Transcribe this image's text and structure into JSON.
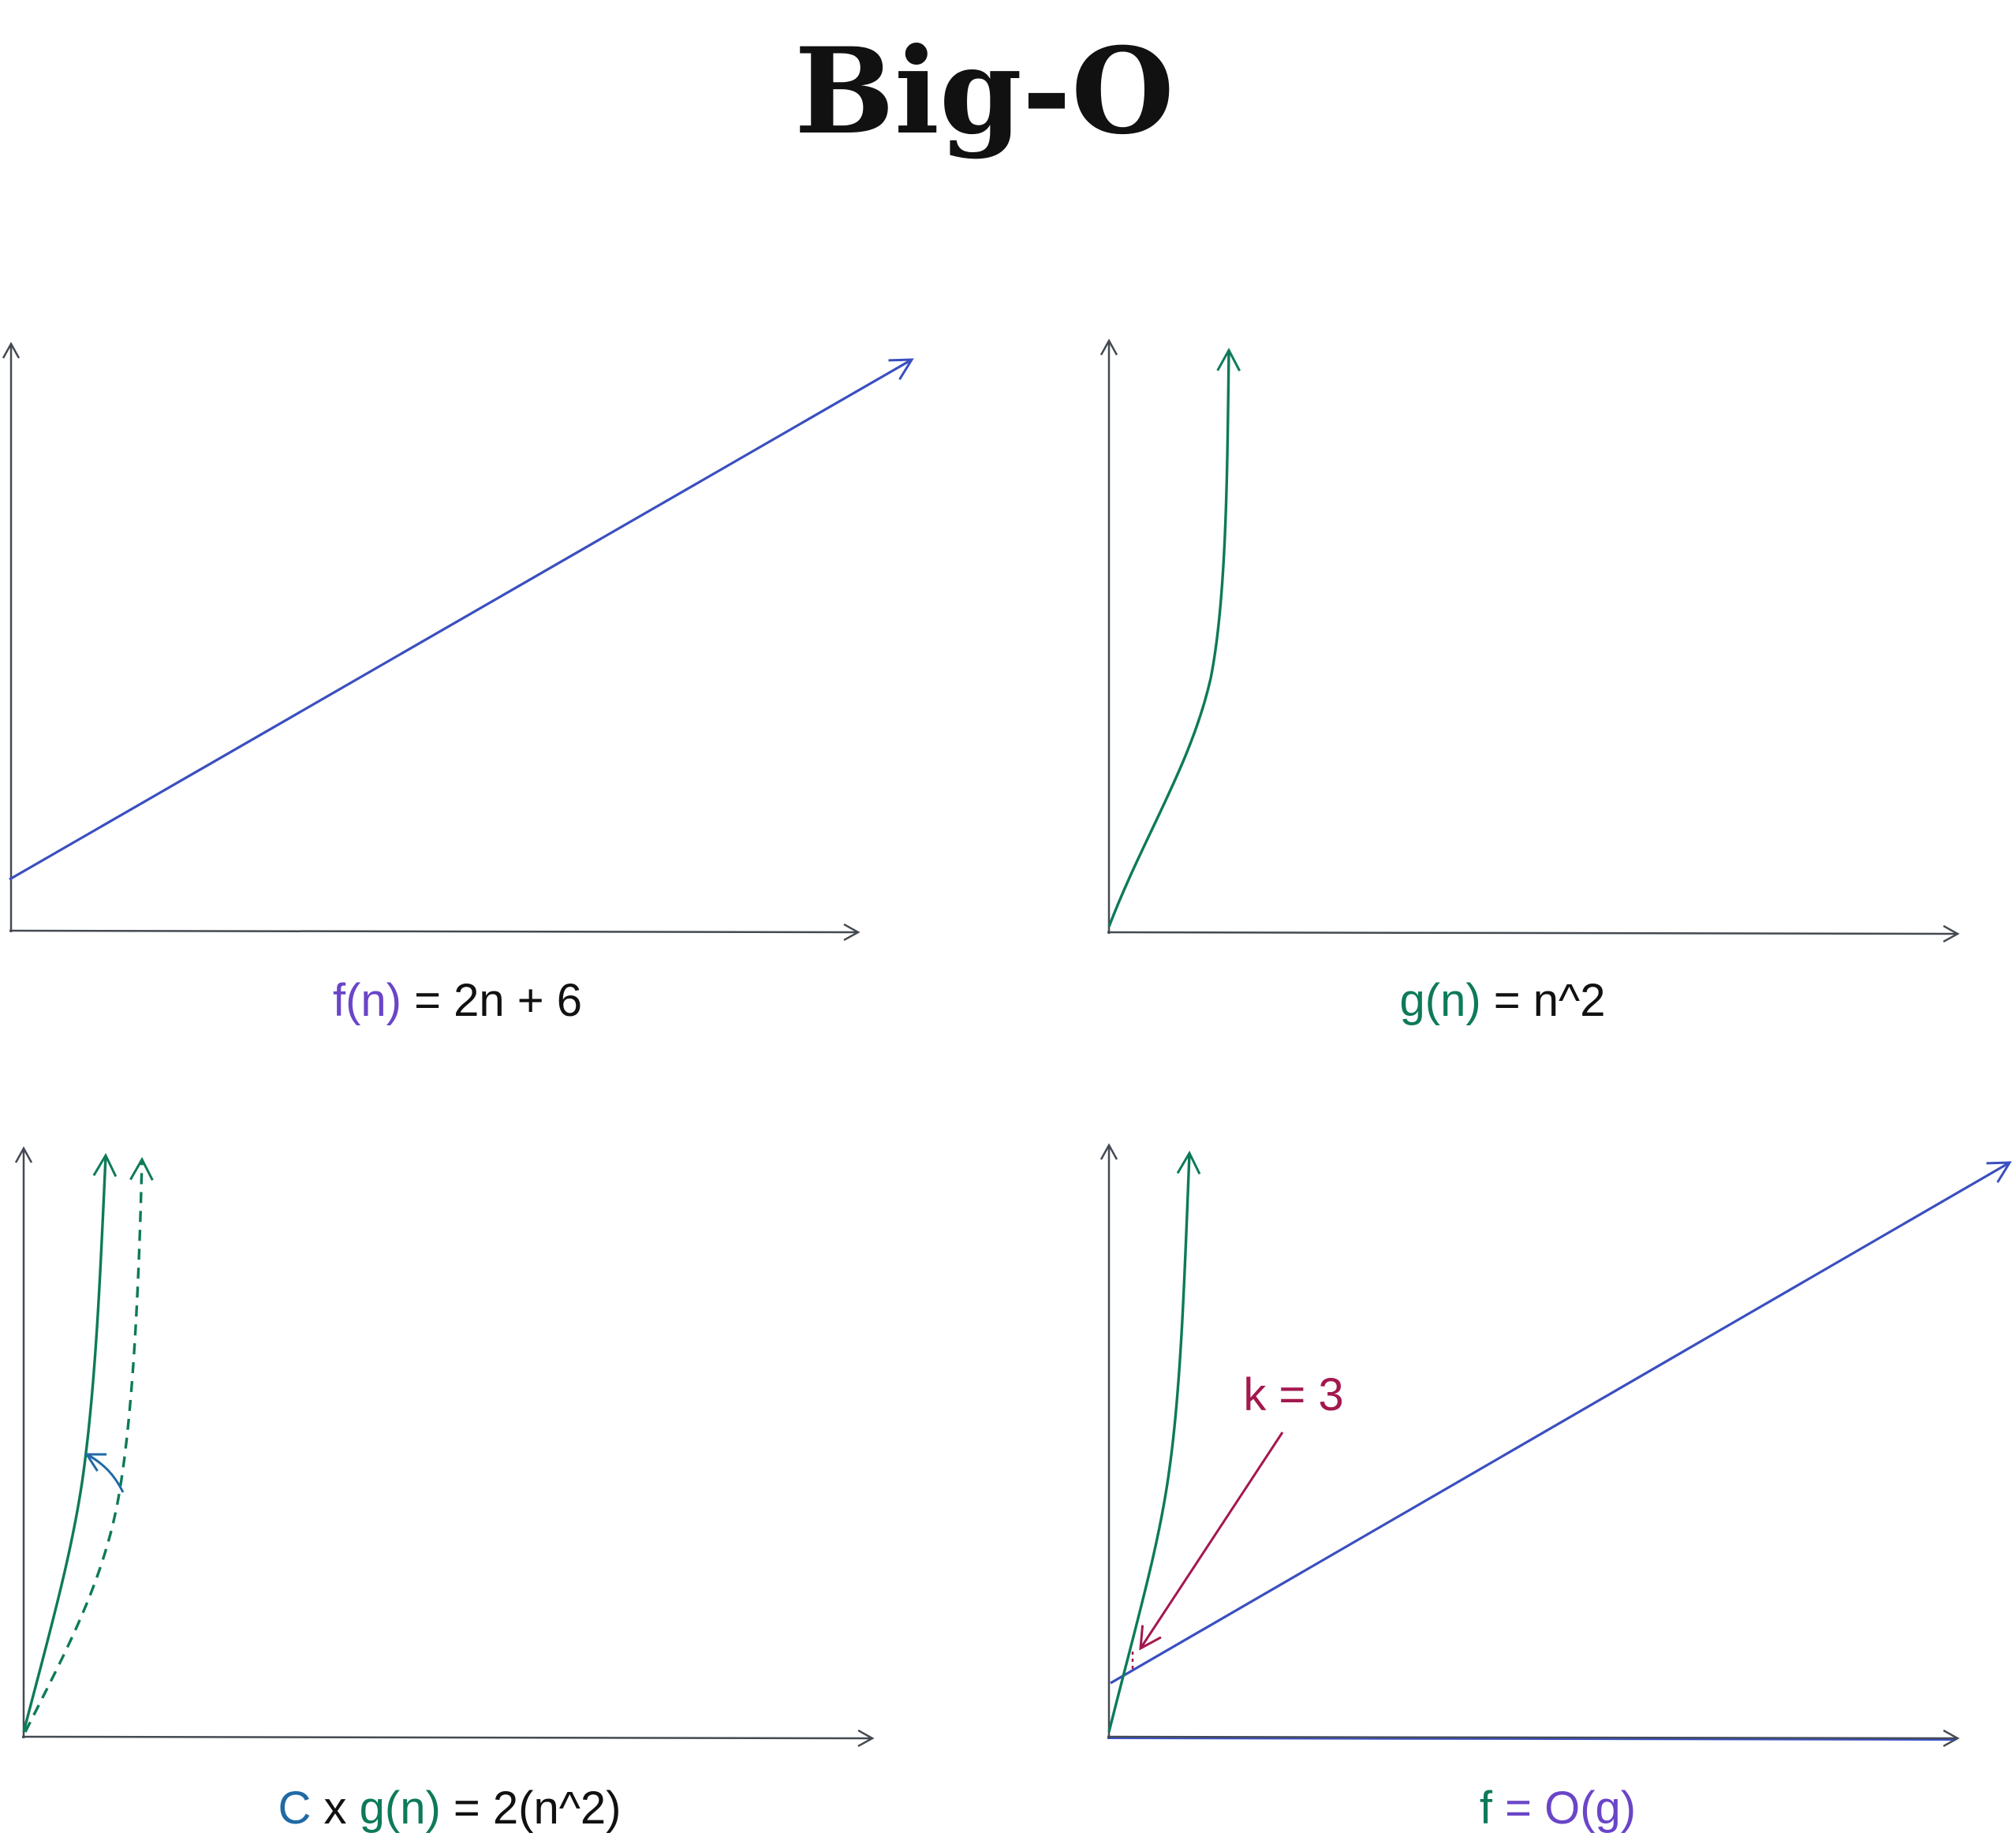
{
  "title": "Big-O",
  "colors": {
    "axis": "#444a52",
    "blue": "#3a4fbf",
    "purple": "#6a45c8",
    "green": "#0e7a5a",
    "black": "#111111",
    "steel_blue": "#1f6aa6",
    "crimson": "#a3184f"
  },
  "panels": [
    {
      "name": "f-linear",
      "label_parts": [
        {
          "text": "f(n)",
          "color": "purple"
        },
        {
          "text": " = 2n + 6",
          "color": "black"
        }
      ]
    },
    {
      "name": "g-quadratic",
      "label_parts": [
        {
          "text": "g(n)",
          "color": "green"
        },
        {
          "text": " = ",
          "color": "black"
        },
        {
          "text": "n^2",
          "color": "black"
        }
      ]
    },
    {
      "name": "c-times-g",
      "label_parts": [
        {
          "text": "C",
          "color": "steel_blue"
        },
        {
          "text": " x ",
          "color": "black"
        },
        {
          "text": "g(n)",
          "color": "green"
        },
        {
          "text": " = 2(n^2)",
          "color": "black"
        }
      ]
    },
    {
      "name": "f-is-big-o-of-g",
      "label_parts": [
        {
          "text": "f",
          "color": "green"
        },
        {
          "text": " = O(g)",
          "color": "purple"
        }
      ],
      "annotation": "k = 3"
    }
  ]
}
